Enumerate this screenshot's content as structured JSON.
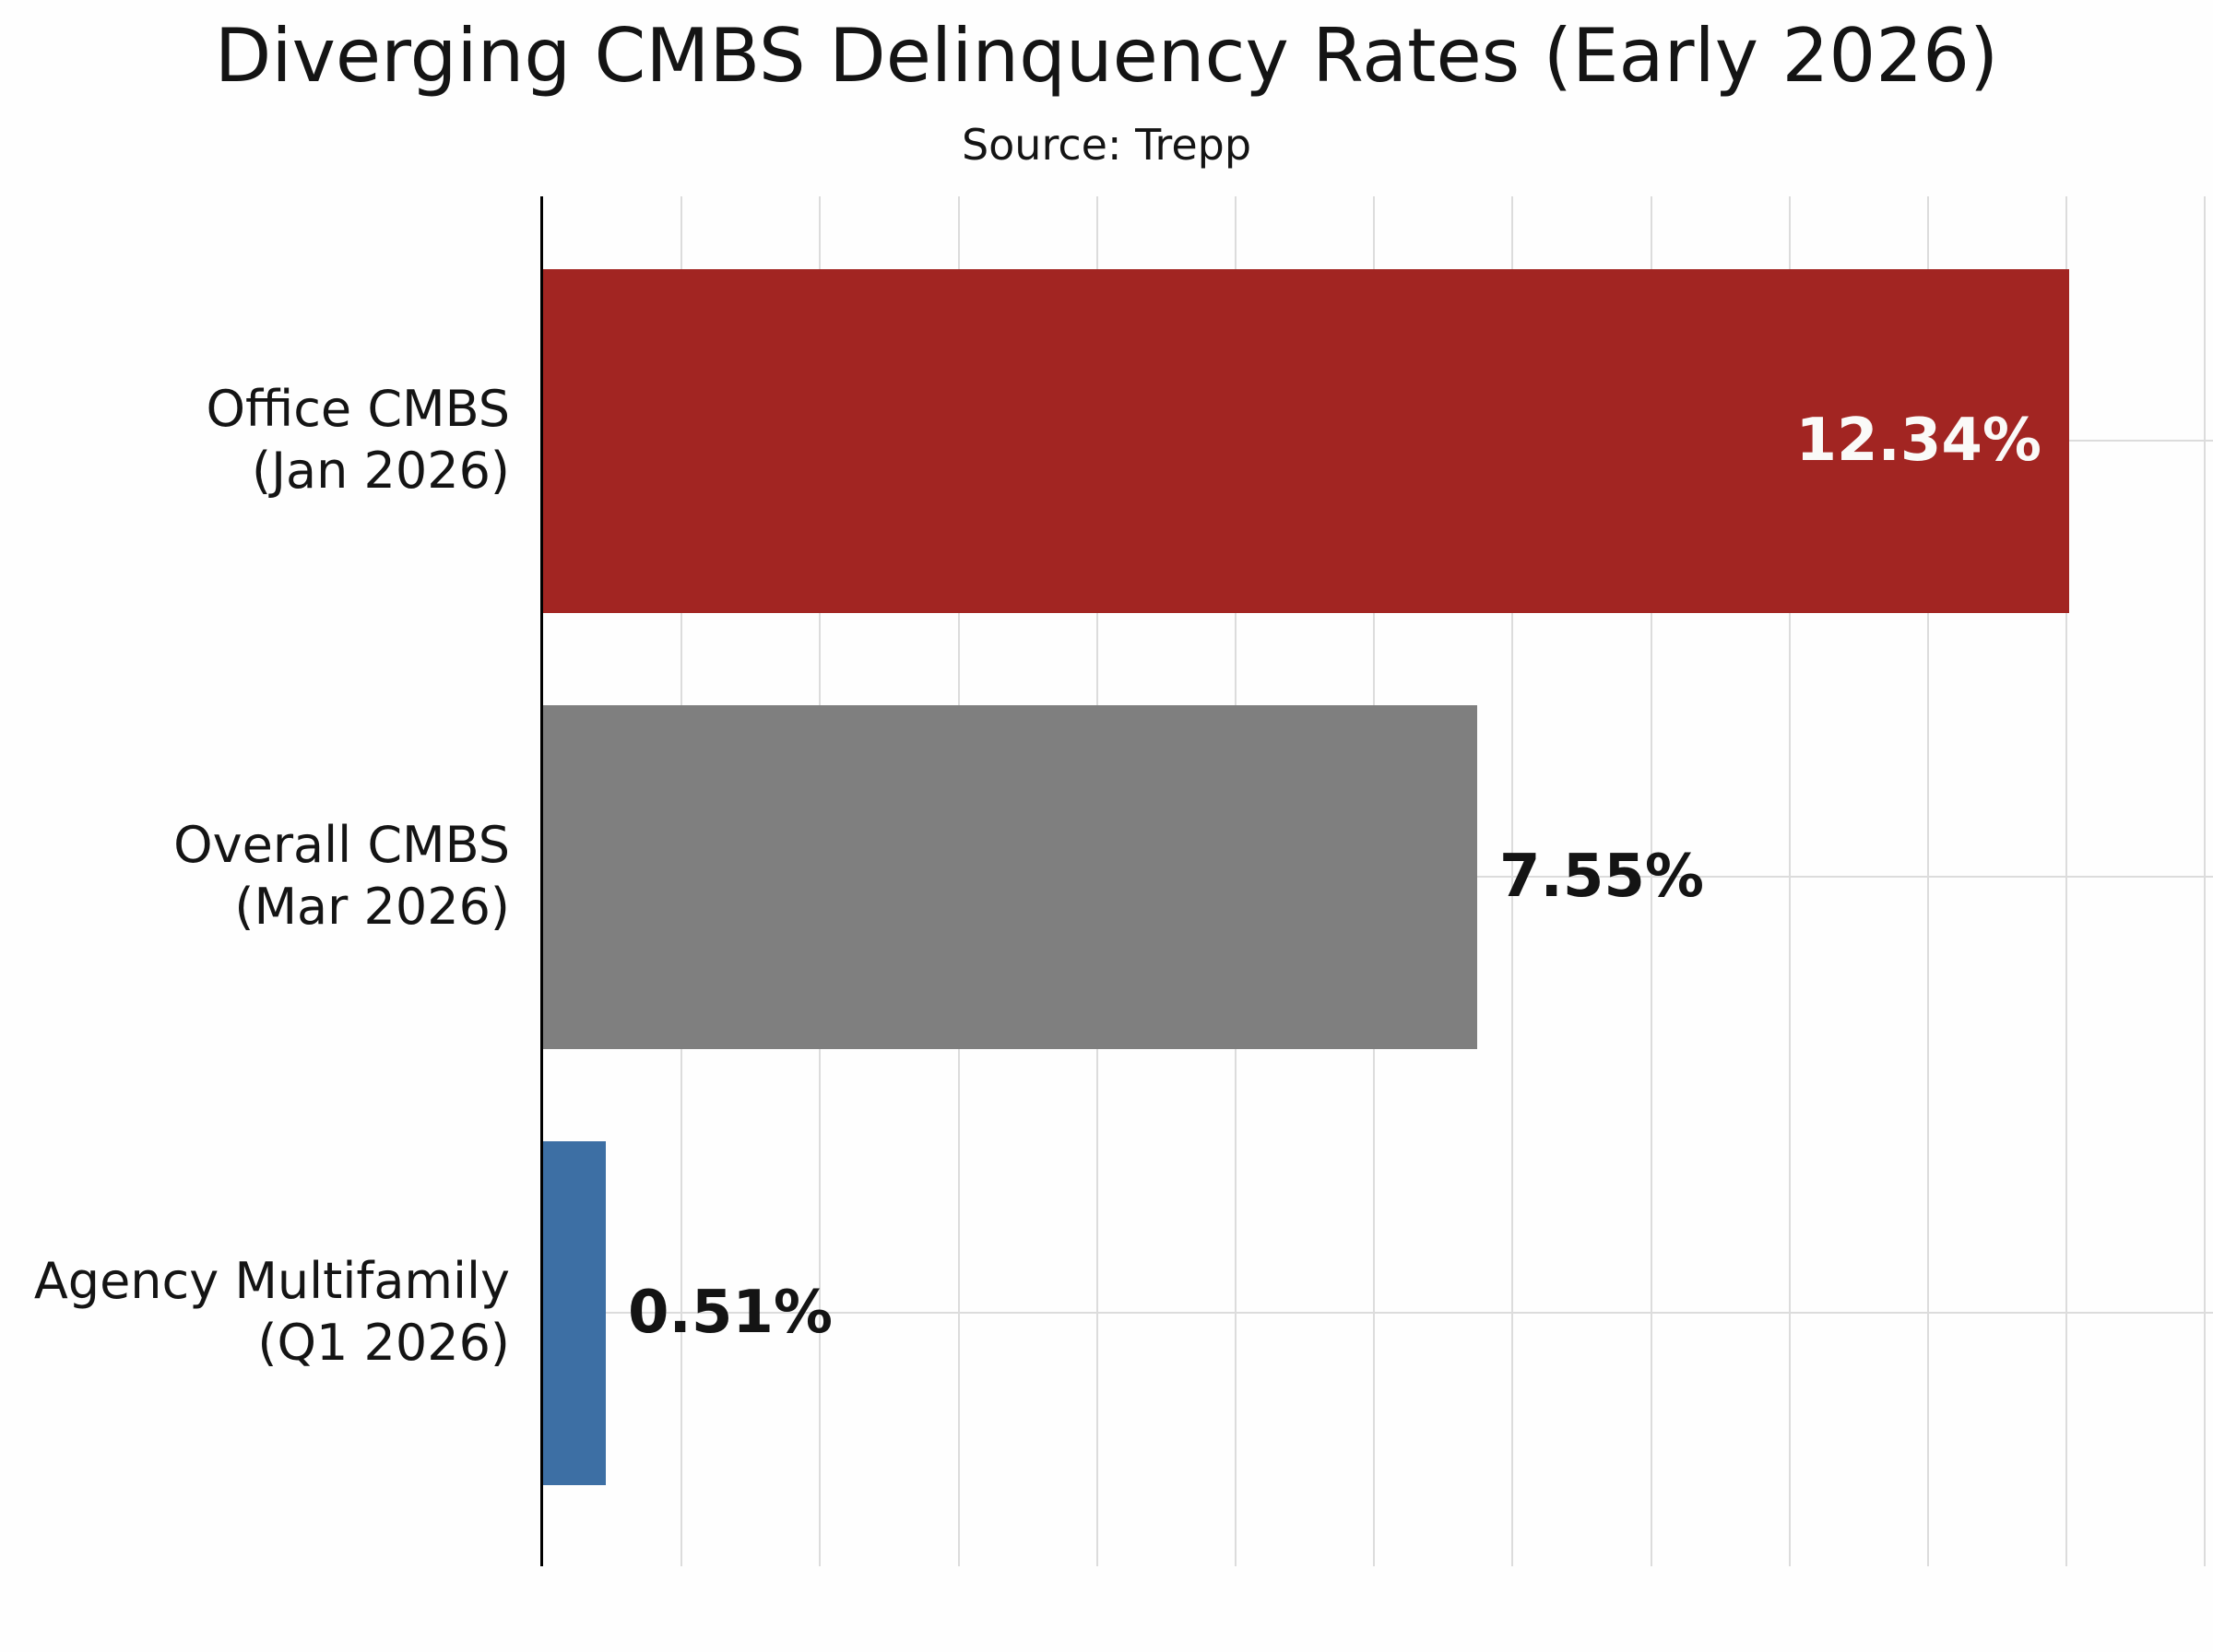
{
  "chart_data": {
    "type": "bar",
    "orientation": "horizontal",
    "title": "Diverging CMBS Delinquency Rates (Early 2026)",
    "subtitle": "Source: Trepp",
    "categories": [
      "Office CMBS (Jan 2026)",
      "Overall CMBS (Mar 2026)",
      "Agency Multifamily (Q1 2026)"
    ],
    "values": [
      12.34,
      7.55,
      0.51
    ],
    "xlabel": "",
    "ylabel": "",
    "xlim": [
      0,
      13.5
    ],
    "grid": true,
    "gridline_color": "#dcdcdc",
    "axis_color": "#000000",
    "background_color": "#fefefe",
    "num_vertical_gridlines": 12,
    "bars": [
      {
        "category_line1": "Office CMBS",
        "category_line2": "(Jan 2026)",
        "value": 12.34,
        "label": "12.34%",
        "color": "#a22522",
        "label_placement": "inside",
        "label_color": "#fafaf8"
      },
      {
        "category_line1": "Overall CMBS",
        "category_line2": "(Mar 2026)",
        "value": 7.55,
        "label": "7.55%",
        "color": "#7f7f7f",
        "label_placement": "outside",
        "label_color": "#141414"
      },
      {
        "category_line1": "Agency Multifamily",
        "category_line2": "(Q1 2026)",
        "value": 0.51,
        "label": "0.51%",
        "color": "#3d6fa4",
        "label_placement": "outside",
        "label_color": "#141414"
      }
    ]
  }
}
